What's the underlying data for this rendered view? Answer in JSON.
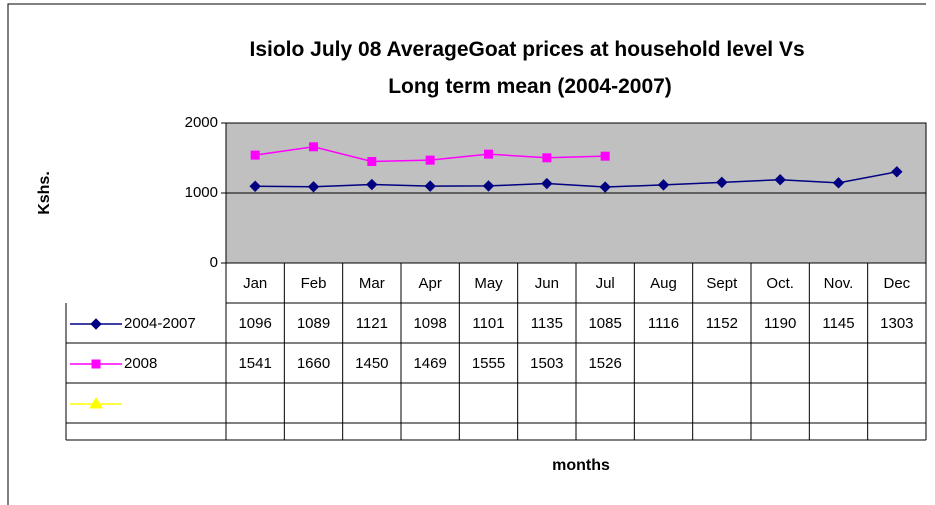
{
  "chart_data": {
    "type": "line",
    "title": [
      "Isiolo July 08 AverageGoat prices at household level Vs",
      "Long term mean (2004-2007)"
    ],
    "y_label": "Kshs.",
    "x_label": "months",
    "categories": [
      "Jan",
      "Feb",
      "Mar",
      "Apr",
      "May",
      "Jun",
      "Jul",
      "Aug",
      "Sept",
      "Oct.",
      "Nov.",
      "Dec"
    ],
    "series": [
      {
        "name": "2004-2007",
        "color": "#000080",
        "marker": "diamond",
        "values": [
          1096,
          1089,
          1121,
          1098,
          1101,
          1135,
          1085,
          1116,
          1152,
          1190,
          1145,
          1303
        ]
      },
      {
        "name": "2008",
        "color": "#ff00ff",
        "marker": "square",
        "values": [
          1541,
          1660,
          1450,
          1469,
          1555,
          1503,
          1526,
          null,
          null,
          null,
          null,
          null
        ]
      },
      {
        "color": "#ffff00",
        "marker": "triangle",
        "values": [
          null,
          null,
          null,
          null,
          null,
          null,
          null,
          null,
          null,
          null,
          null,
          null
        ]
      }
    ],
    "ylim": [
      0,
      2000
    ],
    "yticks": [
      0,
      1000,
      2000
    ],
    "grid": true,
    "plot_background": "#c0c0c0",
    "data_table": true
  }
}
